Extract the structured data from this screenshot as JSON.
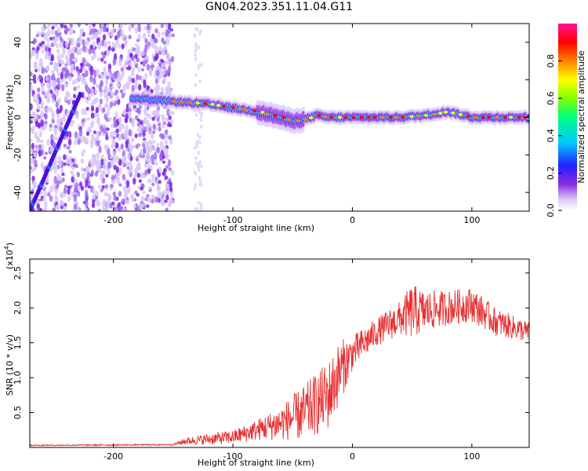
{
  "title": "GN04.2023.351.11.04.G11",
  "chart_data": [
    {
      "type": "heatmap",
      "xlabel": "Height of straight line (km)",
      "ylabel": "Frequency (Hz)",
      "xlim": [
        -270,
        148
      ],
      "ylim": [
        -50,
        50
      ],
      "x_ticks": [
        -200,
        -100,
        0,
        100
      ],
      "y_ticks": [
        -40,
        -20,
        0,
        20,
        40
      ],
      "colorbar": {
        "label": "Normalized spectral amplitude",
        "range": [
          0,
          1
        ],
        "ticks": [
          0.0,
          0.2,
          0.4,
          0.6,
          0.8
        ],
        "colormap": [
          "#ffffff",
          "#d8c8f8",
          "#8a2be2",
          "#2020ff",
          "#00c8ff",
          "#00ff80",
          "#80ff00",
          "#ffff00",
          "#ff8000",
          "#ff0000",
          "#ff1493"
        ]
      },
      "ridge": {
        "x": [
          -185,
          -160,
          -140,
          -120,
          -100,
          -80,
          -60,
          -50,
          -40,
          -30,
          -20,
          -10,
          0,
          20,
          40,
          60,
          80,
          100,
          120,
          148
        ],
        "frequency": [
          10,
          9,
          8,
          7,
          5,
          3,
          0,
          -2,
          -1,
          1,
          0,
          0,
          0,
          0,
          0,
          1,
          3,
          0,
          0,
          0
        ]
      },
      "noise_region_x": [
        -270,
        -150
      ],
      "streak": {
        "x": [
          -270,
          -228
        ],
        "frequency": [
          -50,
          12
        ]
      }
    },
    {
      "type": "line",
      "xlabel": "Height of straight line (km)",
      "ylabel": "SNR (10 * v/v)",
      "y_multiplier": "(x10",
      "y_multiplier_exp": "4",
      "y_multiplier_close": ")",
      "xlim": [
        -270,
        148
      ],
      "ylim": [
        0,
        27000
      ],
      "x_ticks": [
        -200,
        -100,
        0,
        100
      ],
      "y_ticks": [
        5000,
        10000,
        15000,
        20000,
        25000
      ],
      "y_tick_labels": [
        "0.5",
        "1.0",
        "1.5",
        "2.0",
        "2.5"
      ],
      "color": "#e83030",
      "envelope": {
        "x": [
          -270,
          -150,
          -140,
          -120,
          -100,
          -80,
          -60,
          -40,
          -20,
          -10,
          0,
          20,
          40,
          50,
          60,
          80,
          100,
          120,
          148
        ],
        "mean": [
          300,
          400,
          900,
          1200,
          1500,
          2500,
          3500,
          5000,
          7500,
          11000,
          13500,
          16500,
          18500,
          19500,
          19500,
          20000,
          20500,
          18000,
          16500
        ],
        "spread": [
          100,
          100,
          500,
          800,
          1000,
          1500,
          2500,
          4000,
          5000,
          4500,
          2500,
          2000,
          2500,
          4000,
          3000,
          2500,
          2500,
          2000,
          1500
        ]
      }
    }
  ]
}
